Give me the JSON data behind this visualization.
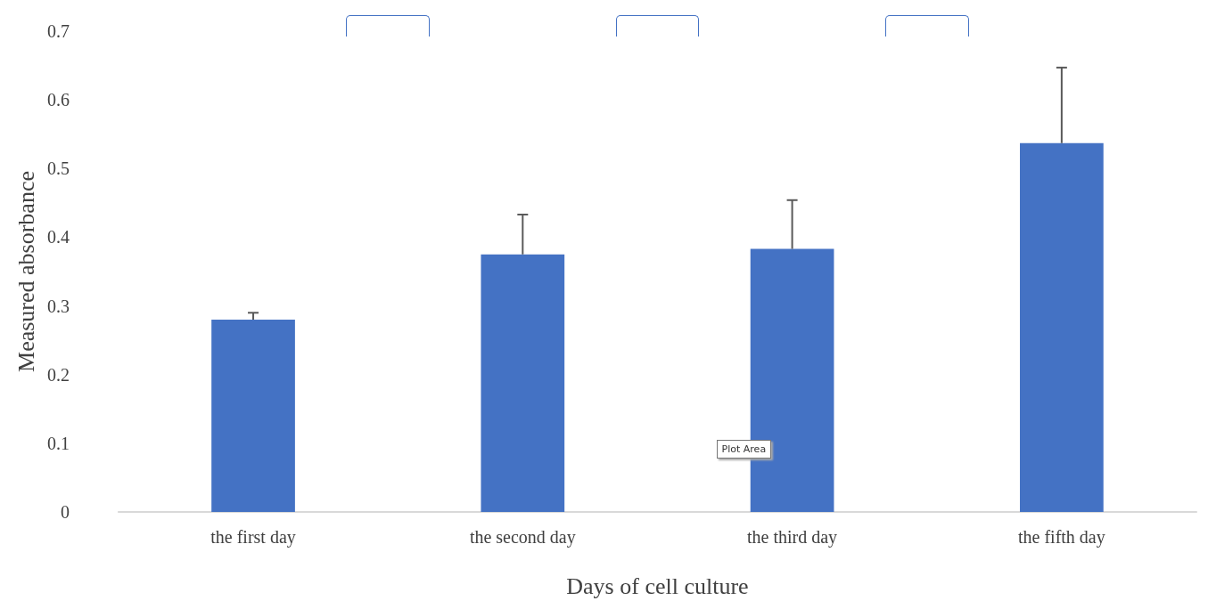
{
  "chart_data": {
    "type": "bar",
    "xlabel": "Days of cell culture",
    "ylabel": "Measured absorbance",
    "categories": [
      "the first day",
      "the second day",
      "the third day",
      "the fifth day"
    ],
    "values": [
      0.28,
      0.375,
      0.383,
      0.537
    ],
    "color": "#4472c4",
    "errors": [
      [
        0.28,
        0.29
      ],
      [
        0.375,
        0.433
      ],
      [
        0.383,
        0.454
      ],
      [
        0.537,
        0.647
      ]
    ],
    "ylim": [
      0,
      0.7
    ],
    "yticks": [
      0,
      0.1,
      0.2,
      0.3,
      0.4,
      0.5,
      0.6,
      0.7
    ],
    "grid": false,
    "annotations": [
      "Plot Area"
    ]
  }
}
